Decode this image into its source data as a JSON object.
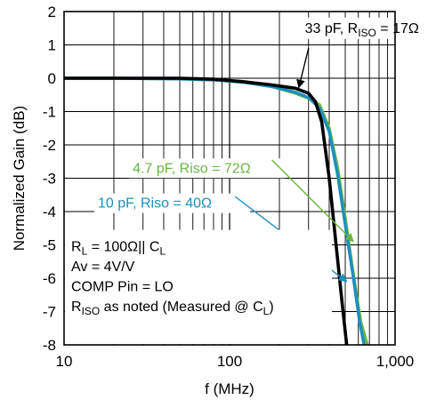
{
  "chart_data": {
    "type": "line",
    "xlabel": "f (MHz)",
    "ylabel": "Normalized Gain (dB)",
    "xscale": "log",
    "xlim": [
      10,
      1000
    ],
    "ylim": [
      -8,
      2
    ],
    "x_ticks": [
      10,
      100,
      1000
    ],
    "x_tick_labels": [
      "10",
      "100",
      "1,000"
    ],
    "y_ticks": [
      2,
      1,
      0,
      -1,
      -2,
      -3,
      -4,
      -5,
      -6,
      -7,
      -8
    ],
    "y_tick_labels": [
      "2",
      "1",
      "0",
      "-1",
      "-2",
      "-3",
      "-4",
      "-5",
      "-6",
      "-7",
      "-8"
    ],
    "grid": true,
    "series": [
      {
        "color": "#6ab545",
        "x": [
          10,
          20,
          50,
          80,
          120,
          180,
          250,
          300,
          350,
          400,
          450,
          500,
          560,
          620,
          680
        ],
        "y": [
          0.0,
          0.0,
          -0.02,
          -0.05,
          -0.12,
          -0.25,
          -0.45,
          -0.6,
          -0.8,
          -1.5,
          -2.7,
          -4.2,
          -5.9,
          -7.3,
          -8.0
        ]
      },
      {
        "color": "#1b8fc0",
        "x": [
          10,
          20,
          50,
          80,
          120,
          180,
          250,
          300,
          350,
          400,
          450,
          500,
          560,
          610,
          650
        ],
        "y": [
          0.0,
          0.0,
          -0.02,
          -0.05,
          -0.12,
          -0.25,
          -0.42,
          -0.58,
          -0.9,
          -1.6,
          -2.9,
          -4.4,
          -6.0,
          -7.3,
          -8.0
        ]
      },
      {
        "color": "#000000",
        "x": [
          10,
          20,
          50,
          80,
          120,
          180,
          250,
          300,
          330,
          360,
          400,
          440,
          480,
          510
        ],
        "y": [
          0.0,
          0.0,
          0.0,
          -0.03,
          -0.1,
          -0.2,
          -0.3,
          -0.45,
          -0.7,
          -1.3,
          -3.0,
          -5.0,
          -6.8,
          -8.0
        ]
      }
    ],
    "annotations": [
      {
        "text": "33 pF, R",
        "sub": "ISO",
        "tail": " = 17Ω",
        "color": "#000000",
        "text_at": [
          285,
          1.5
        ],
        "arrow_from": [
          300,
          0.9
        ],
        "arrow_to": [
          262,
          -0.28
        ]
      },
      {
        "text": "4.7 pF, Riso = 72Ω",
        "color": "#6ab545",
        "text_at": [
          26,
          -2.7
        ],
        "arrow_from": [
          180,
          -2.45
        ],
        "arrow_to": [
          560,
          -4.9
        ]
      },
      {
        "text": "10 pF, Riso = 40Ω",
        "color": "#1b8fc0",
        "text_at": [
          16,
          -3.75
        ],
        "arrow_from": [
          108,
          -3.55
        ],
        "arrow_to": [
          510,
          -6.1
        ]
      }
    ],
    "conditions": [
      {
        "pre": "R",
        "sub": "L",
        "post": " = 100Ω|| C",
        "sub2": "L",
        "post2": ""
      },
      {
        "pre": "Av = 4V/V",
        "sub": "",
        "post": "",
        "sub2": "",
        "post2": ""
      },
      {
        "pre": "COMP Pin = LO",
        "sub": "",
        "post": "",
        "sub2": "",
        "post2": ""
      },
      {
        "pre": "R",
        "sub": "ISO",
        "post": " as noted (Measured @ C",
        "sub2": "L",
        "post2": ")"
      }
    ]
  }
}
